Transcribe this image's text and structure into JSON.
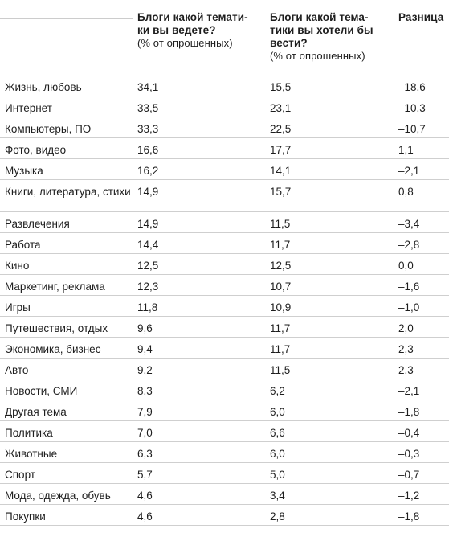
{
  "header": {
    "col1_title": "Блоги какой темати-ки вы ведете?",
    "col1_sub": "(% от опрошенных)",
    "col2_title": "Блоги какой тема-тики вы хотели бы вести?",
    "col2_sub": "(% от опрошенных)",
    "col3_title": "Разница"
  },
  "rows": [
    {
      "topic": "Жизнь, любовь",
      "maintain": "34,1",
      "want": "15,5",
      "diff": "–18,6"
    },
    {
      "topic": "Интернет",
      "maintain": "33,5",
      "want": "23,1",
      "diff": "–10,3"
    },
    {
      "topic": "Компьютеры, ПО",
      "maintain": "33,3",
      "want": "22,5",
      "diff": "–10,7"
    },
    {
      "topic": "Фото, видео",
      "maintain": "16,6",
      "want": "17,7",
      "diff": "1,1"
    },
    {
      "topic": "Музыка",
      "maintain": "16,2",
      "want": "14,1",
      "diff": "–2,1"
    },
    {
      "topic": "Книги, литература, стихи",
      "maintain": "14,9",
      "want": "15,7",
      "diff": "0,8"
    },
    {
      "topic": "Развлечения",
      "maintain": "14,9",
      "want": "11,5",
      "diff": "–3,4"
    },
    {
      "topic": "Работа",
      "maintain": "14,4",
      "want": "11,7",
      "diff": "–2,8"
    },
    {
      "topic": "Кино",
      "maintain": "12,5",
      "want": "12,5",
      "diff": "0,0"
    },
    {
      "topic": "Маркетинг, реклама",
      "maintain": "12,3",
      "want": "10,7",
      "diff": "–1,6"
    },
    {
      "topic": "Игры",
      "maintain": "11,8",
      "want": "10,9",
      "diff": "–1,0"
    },
    {
      "topic": "Путешествия, отдых",
      "maintain": "9,6",
      "want": "11,7",
      "diff": "2,0"
    },
    {
      "topic": "Экономика, бизнес",
      "maintain": "9,4",
      "want": "11,7",
      "diff": "2,3"
    },
    {
      "topic": "Авто",
      "maintain": "9,2",
      "want": "11,5",
      "diff": "2,3"
    },
    {
      "topic": "Новости, СМИ",
      "maintain": "8,3",
      "want": "6,2",
      "diff": "–2,1"
    },
    {
      "topic": "Другая тема",
      "maintain": "7,9",
      "want": "6,0",
      "diff": "–1,8"
    },
    {
      "topic": "Политика",
      "maintain": "7,0",
      "want": "6,6",
      "diff": "–0,4"
    },
    {
      "topic": "Животные",
      "maintain": "6,3",
      "want": "6,0",
      "diff": "–0,3"
    },
    {
      "topic": "Спорт",
      "maintain": "5,7",
      "want": "5,0",
      "diff": "–0,7"
    },
    {
      "topic": "Мода, одежда, обувь",
      "maintain": "4,6",
      "want": "3,4",
      "diff": "–1,2"
    },
    {
      "topic": "Покупки",
      "maintain": "4,6",
      "want": "2,8",
      "diff": "–1,8"
    }
  ]
}
